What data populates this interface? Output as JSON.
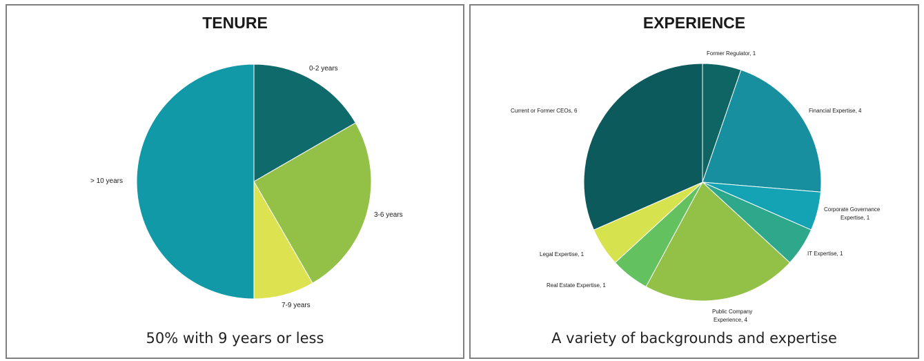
{
  "chart_data": [
    {
      "type": "pie",
      "title": "TENURE",
      "caption": "50% with 9 years or less",
      "slices": [
        {
          "label": "0-2 years",
          "value": 2,
          "color": "#0f6b6b"
        },
        {
          "label": "3-6 years",
          "value": 3,
          "color": "#93c047"
        },
        {
          "label": "7-9 years",
          "value": 1,
          "color": "#dde350"
        },
        {
          "label": "> 10 years",
          "value": 6,
          "color": "#1199a8"
        }
      ]
    },
    {
      "type": "pie",
      "title": "EXPERIENCE",
      "caption": "A variety of backgrounds and expertise",
      "slices": [
        {
          "label": "Former Regulator, 1",
          "value": 1,
          "color": "#0f6464"
        },
        {
          "label": "Financial Expertise, 4",
          "value": 4,
          "color": "#178f9f"
        },
        {
          "label": "Corporate Governance Expertise, 1",
          "value": 1,
          "color": "#13a3b5"
        },
        {
          "label": "IT Expertise, 1",
          "value": 1,
          "color": "#2da88a"
        },
        {
          "label": "Public Company Experience, 4",
          "value": 4,
          "color": "#93c047"
        },
        {
          "label": "Real Estate Expertise, 1",
          "value": 1,
          "color": "#63c25f"
        },
        {
          "label": "Legal Expertise, 1",
          "value": 1,
          "color": "#d7e34e"
        },
        {
          "label": "Current or Former CEOs, 6",
          "value": 6,
          "color": "#0d5a5c"
        }
      ]
    }
  ]
}
